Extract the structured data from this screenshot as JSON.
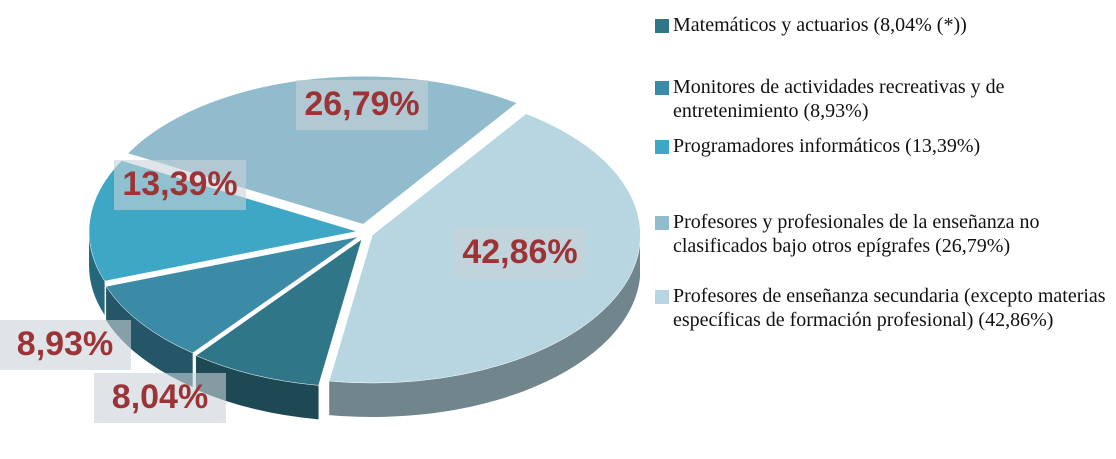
{
  "chart_data": {
    "type": "pie",
    "categories": [
      "Matemáticos y actuarios (8,04% (*))",
      "Monitores de actividades recreativas y de entretenimiento (8,93%)",
      "Programadores informáticos (13,39%)",
      "Profesores y profesionales de la enseñanza no clasificados bajo otros epígrafes (26,79%)",
      "Profesores de enseñanza secundaria (excepto materias específicas de formación profesional) (42,86%)"
    ],
    "values": [
      8.04,
      8.93,
      13.39,
      26.79,
      42.86
    ],
    "value_labels": [
      "8,04%",
      "8,93%",
      "13,39%",
      "26,79%",
      "42,86%"
    ],
    "colors": [
      "#2f7688",
      "#3b8ba6",
      "#3ea7c6",
      "#90bccd",
      "#b7d6e1"
    ],
    "legend": "right"
  }
}
